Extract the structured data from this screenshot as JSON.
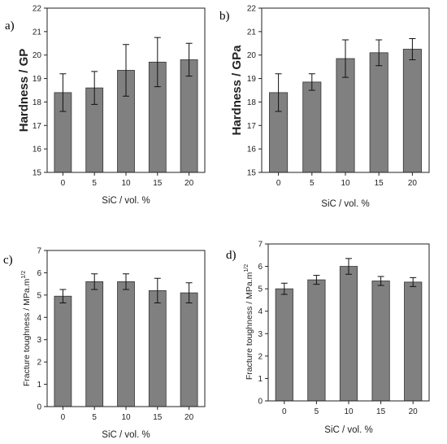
{
  "chart_data": [
    {
      "type": "bar",
      "panel_label": "a)",
      "categories": [
        "0",
        "5",
        "10",
        "15",
        "20"
      ],
      "values": [
        18.4,
        18.6,
        19.35,
        19.7,
        19.8
      ],
      "errors": [
        0.8,
        0.7,
        1.1,
        1.05,
        0.7
      ],
      "xlabel": "SiC / vol. %",
      "ylabel": "Hardness / GP",
      "ylim": [
        15,
        22
      ],
      "yticks": [
        15,
        16,
        17,
        18,
        19,
        20,
        21,
        22
      ],
      "bar_color": "#808080"
    },
    {
      "type": "bar",
      "panel_label": "b)",
      "categories": [
        "0",
        "5",
        "10",
        "15",
        "20"
      ],
      "values": [
        18.4,
        18.85,
        19.85,
        20.1,
        20.25
      ],
      "errors": [
        0.8,
        0.35,
        0.8,
        0.55,
        0.45
      ],
      "xlabel": "SiC / vol. %",
      "ylabel": "Hardness / GPa",
      "ylim": [
        15,
        22
      ],
      "yticks": [
        15,
        16,
        17,
        18,
        19,
        20,
        21,
        22
      ],
      "bar_color": "#808080"
    },
    {
      "type": "bar",
      "panel_label": "c)",
      "categories": [
        "0",
        "5",
        "10",
        "15",
        "20"
      ],
      "values": [
        4.95,
        5.6,
        5.6,
        5.2,
        5.1
      ],
      "errors": [
        0.3,
        0.35,
        0.35,
        0.55,
        0.45
      ],
      "xlabel": "SiC / vol. %",
      "ylabel": "Fracture toughness / MPa.m",
      "ylabel_sup": "1/2",
      "ylim": [
        0,
        7
      ],
      "yticks": [
        0,
        1,
        2,
        3,
        4,
        5,
        6,
        7
      ],
      "bar_color": "#808080"
    },
    {
      "type": "bar",
      "panel_label": "d)",
      "categories": [
        "0",
        "5",
        "10",
        "15",
        "20"
      ],
      "values": [
        5.0,
        5.4,
        6.0,
        5.35,
        5.3
      ],
      "errors": [
        0.25,
        0.2,
        0.35,
        0.2,
        0.2
      ],
      "xlabel": "SiC / vol. %",
      "ylabel": "Fracture toughness / MPa.m",
      "ylabel_sup": "1/2",
      "ylim": [
        0,
        7
      ],
      "yticks": [
        0,
        1,
        2,
        3,
        4,
        5,
        6,
        7
      ],
      "bar_color": "#808080"
    }
  ]
}
